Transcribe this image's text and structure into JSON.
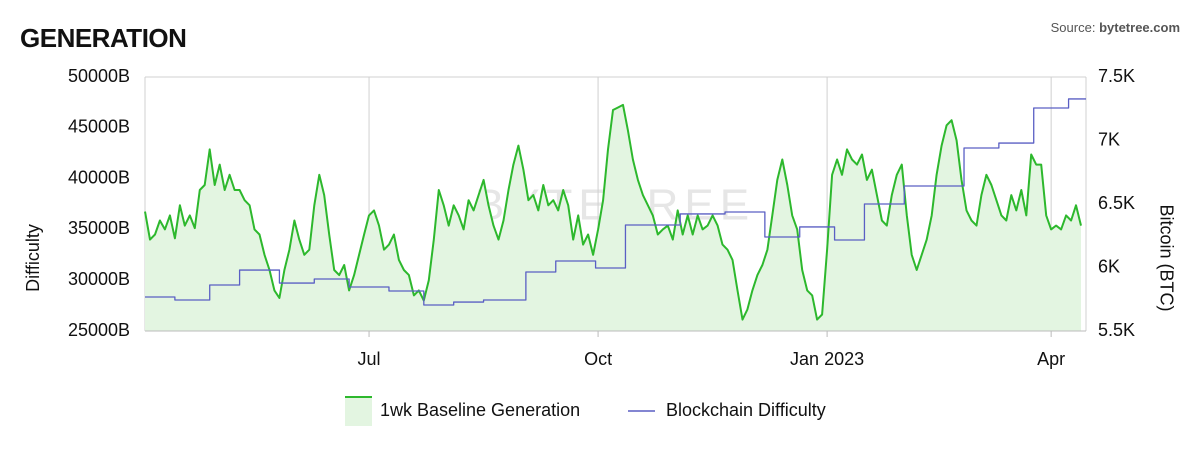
{
  "chart_data": {
    "type": "line",
    "title": "GENERATION",
    "source": {
      "label": "Source:",
      "name": "bytetree.com"
    },
    "watermark": "BYTETREE",
    "y_label": "Difficulty",
    "y2_label": "Bitcoin (BTC)",
    "xlim": [
      0,
      378
    ],
    "xticks": [
      {
        "value": 90,
        "label": "Jul"
      },
      {
        "value": 182,
        "label": "Oct"
      },
      {
        "value": 274,
        "label": "Jan 2023"
      },
      {
        "value": 364,
        "label": "Apr"
      }
    ],
    "ylim": [
      25000,
      50000
    ],
    "yticks": [
      {
        "value": 25000,
        "label": "25000B"
      },
      {
        "value": 30000,
        "label": "30000B"
      },
      {
        "value": 35000,
        "label": "35000B"
      },
      {
        "value": 40000,
        "label": "40000B"
      },
      {
        "value": 45000,
        "label": "45000B"
      },
      {
        "value": 50000,
        "label": "50000B"
      }
    ],
    "y2lim": [
      5500,
      7500
    ],
    "y2ticks": [
      {
        "value": 5500,
        "label": "5.5K"
      },
      {
        "value": 6000,
        "label": "6K"
      },
      {
        "value": 6500,
        "label": "6.5K"
      },
      {
        "value": 7000,
        "label": "7K"
      },
      {
        "value": 7500,
        "label": "7.5K"
      }
    ],
    "grid": "x",
    "legend": "bottom",
    "x": [
      0,
      2,
      4,
      6,
      8,
      10,
      12,
      14,
      16,
      18,
      20,
      22,
      24,
      26,
      28,
      30,
      32,
      34,
      36,
      38,
      40,
      42,
      44,
      46,
      48,
      50,
      52,
      54,
      56,
      58,
      60,
      62,
      64,
      66,
      68,
      70,
      72,
      74,
      76,
      78,
      80,
      82,
      84,
      86,
      88,
      90,
      92,
      94,
      96,
      98,
      100,
      102,
      104,
      106,
      108,
      110,
      112,
      114,
      116,
      118,
      120,
      122,
      124,
      126,
      128,
      130,
      132,
      134,
      136,
      138,
      140,
      142,
      144,
      146,
      148,
      150,
      152,
      154,
      156,
      158,
      160,
      162,
      164,
      166,
      168,
      170,
      172,
      174,
      176,
      178,
      180,
      182,
      184,
      186,
      188,
      190,
      192,
      194,
      196,
      198,
      200,
      202,
      204,
      206,
      208,
      210,
      212,
      214,
      216,
      218,
      220,
      222,
      224,
      226,
      228,
      230,
      232,
      234,
      236,
      238,
      240,
      242,
      244,
      246,
      248,
      250,
      252,
      254,
      256,
      258,
      260,
      262,
      264,
      266,
      268,
      270,
      272,
      274,
      276,
      278,
      280,
      282,
      284,
      286,
      288,
      290,
      292,
      294,
      296,
      298,
      300,
      302,
      304,
      306,
      308,
      310,
      312,
      314,
      316,
      318,
      320,
      322,
      324,
      326,
      328,
      330,
      332,
      334,
      336,
      338,
      340,
      342,
      344,
      346,
      348,
      350,
      352,
      354,
      356,
      358,
      360,
      362,
      364,
      366,
      368,
      370,
      372,
      374,
      376
    ],
    "series": [
      {
        "name": "1wk Baseline Generation",
        "color": "#2db82d",
        "fill": "#e3f5e1",
        "axis": "y2",
        "values": [
          6440,
          6220,
          6260,
          6370,
          6300,
          6410,
          6230,
          6490,
          6330,
          6410,
          6310,
          6610,
          6650,
          6930,
          6650,
          6810,
          6610,
          6730,
          6610,
          6610,
          6530,
          6490,
          6300,
          6260,
          6100,
          5980,
          5820,
          5760,
          5980,
          6140,
          6370,
          6220,
          6100,
          6140,
          6490,
          6730,
          6570,
          6260,
          5980,
          5940,
          6020,
          5820,
          5940,
          6100,
          6260,
          6410,
          6450,
          6330,
          6140,
          6180,
          6260,
          6060,
          5980,
          5940,
          5780,
          5820,
          5740,
          5900,
          6220,
          6610,
          6490,
          6330,
          6490,
          6410,
          6300,
          6530,
          6450,
          6570,
          6690,
          6490,
          6330,
          6220,
          6370,
          6610,
          6810,
          6960,
          6770,
          6530,
          6570,
          6450,
          6650,
          6490,
          6530,
          6450,
          6610,
          6490,
          6220,
          6410,
          6180,
          6260,
          6100,
          6300,
          6530,
          6930,
          7240,
          7260,
          7280,
          7080,
          6850,
          6690,
          6570,
          6490,
          6410,
          6260,
          6300,
          6330,
          6220,
          6450,
          6260,
          6410,
          6260,
          6410,
          6300,
          6330,
          6410,
          6330,
          6180,
          6140,
          6060,
          5820,
          5590,
          5670,
          5820,
          5940,
          6020,
          6140,
          6410,
          6690,
          6850,
          6650,
          6410,
          6300,
          5980,
          5820,
          5780,
          5590,
          5630,
          6140,
          6730,
          6850,
          6730,
          6930,
          6850,
          6810,
          6890,
          6690,
          6770,
          6570,
          6370,
          6330,
          6570,
          6730,
          6810,
          6410,
          6100,
          5980,
          6100,
          6220,
          6410,
          6730,
          6960,
          7120,
          7160,
          7000,
          6690,
          6450,
          6370,
          6330,
          6570,
          6730,
          6650,
          6530,
          6410,
          6370,
          6570,
          6450,
          6610,
          6410,
          6890,
          6810,
          6810,
          6410,
          6300,
          6330,
          6300,
          6410,
          6370,
          6490,
          6330
        ]
      },
      {
        "name": "Blockchain Difficulty",
        "color": "#5a5fc4",
        "axis": "y",
        "step": "after",
        "x": [
          0,
          12,
          26,
          38,
          54,
          68,
          82,
          98,
          112,
          124,
          136,
          153,
          165,
          181,
          193,
          215,
          233,
          249,
          263,
          277,
          289,
          305,
          329,
          343,
          357,
          371
        ],
        "values": [
          28350,
          28050,
          29530,
          31000,
          29720,
          30120,
          29330,
          28940,
          27560,
          27850,
          28050,
          30810,
          31890,
          31200,
          35430,
          36520,
          36710,
          34250,
          35240,
          33960,
          37500,
          39270,
          43010,
          43500,
          46950,
          47840
        ]
      }
    ]
  }
}
